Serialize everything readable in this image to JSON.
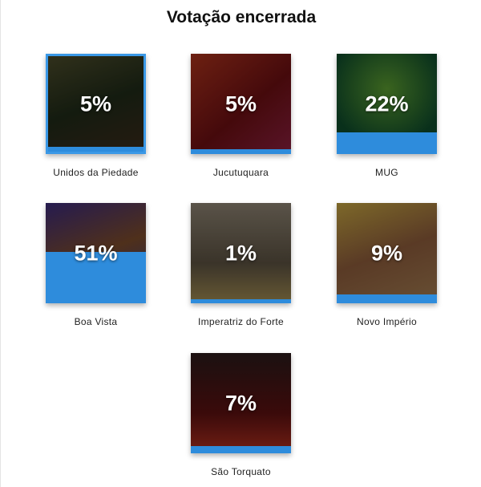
{
  "title": "Votação encerrada",
  "accent": "#2e8cdc",
  "candidates": [
    {
      "name": "Unidos da Piedade",
      "percent": "5%",
      "value": 5,
      "selected": true,
      "bg": "linear-gradient(160deg,#4a4a2a,#1f2a18 50%,#3a2a1a)"
    },
    {
      "name": "Jucutuquara",
      "percent": "5%",
      "value": 5,
      "selected": false,
      "bg": "linear-gradient(140deg,#a8321c,#6a0f12 55%,#8a2040)"
    },
    {
      "name": "MUG",
      "percent": "22%",
      "value": 22,
      "selected": false,
      "bg": "radial-gradient(circle at 50% 35%,#5a9a30,#0e4a2a 70%)"
    },
    {
      "name": "Boa Vista",
      "percent": "51%",
      "value": 51,
      "selected": false,
      "bg": "linear-gradient(160deg,#3a2a7a,#7a4a2a 50%,#2a3a8a)"
    },
    {
      "name": "Imperatriz do Forte",
      "percent": "1%",
      "value": 1,
      "selected": false,
      "bg": "linear-gradient(180deg,#8a8070,#5a5040 60%,#a08a50)"
    },
    {
      "name": "Novo Império",
      "percent": "9%",
      "value": 9,
      "selected": false,
      "bg": "linear-gradient(160deg,#c0a040,#8a5a3a 50%,#a07a50)"
    },
    {
      "name": "São Torquato",
      "percent": "7%",
      "value": 7,
      "selected": false,
      "bg": "linear-gradient(180deg,#2a1a1a,#5a1010 60%,#b03020)"
    }
  ]
}
